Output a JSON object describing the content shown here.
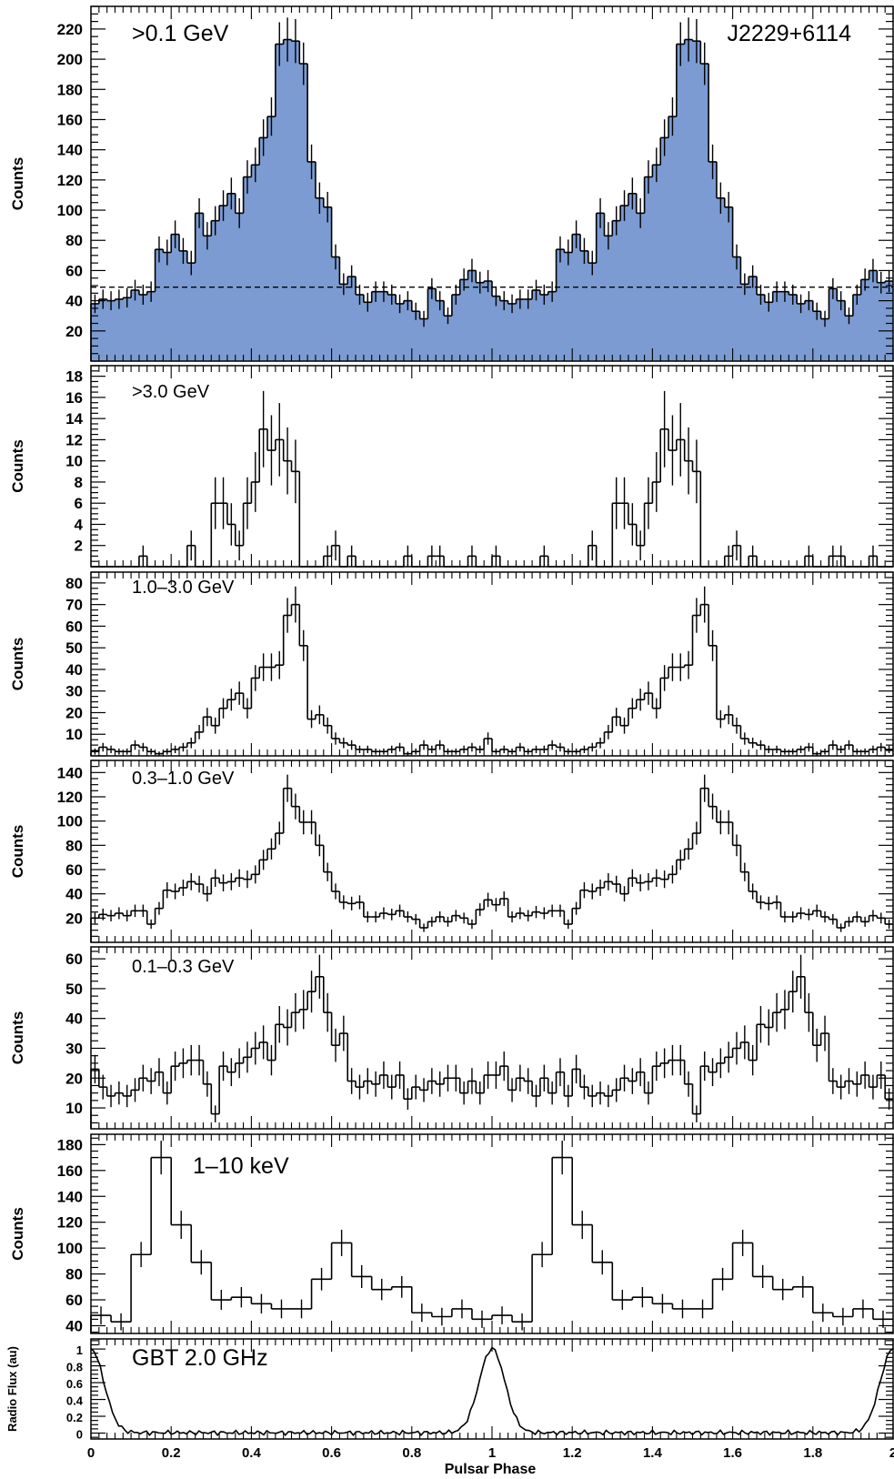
{
  "figure": {
    "source": "J2229+6114",
    "xlabel": "Pulsar Phase",
    "x_ticks": [
      "0",
      "0.2",
      "0.4",
      "0.6",
      "0.8",
      "1",
      "1.2",
      "1.4",
      "1.6",
      "1.8",
      "2"
    ]
  },
  "chart_data": [
    {
      "type": "bar",
      "label": ">0.1 GeV",
      "ylabel": "Counts",
      "ylim": [
        0,
        235
      ],
      "yticks": [
        20,
        40,
        60,
        80,
        100,
        120,
        140,
        160,
        180,
        200,
        220
      ],
      "bins": 100,
      "xlim": [
        0,
        2
      ],
      "filled": true,
      "fill_color": "#7b9bd2",
      "background_level": 49,
      "values": [
        38,
        41,
        40,
        41,
        42,
        47,
        44,
        46,
        74,
        72,
        84,
        73,
        65,
        98,
        83,
        93,
        103,
        111,
        98,
        122,
        130,
        148,
        162,
        210,
        213,
        212,
        197,
        132,
        108,
        102,
        69,
        51,
        56,
        44,
        39,
        46,
        46,
        44,
        38,
        40,
        33,
        28,
        48,
        40,
        30,
        44,
        54,
        60,
        52,
        53,
        43,
        40,
        38,
        41,
        41,
        47,
        44,
        46,
        74,
        72,
        84,
        73,
        65,
        98,
        83,
        93,
        103,
        111,
        98,
        122,
        130,
        148,
        162,
        210,
        213,
        212,
        197,
        132,
        108,
        102,
        69,
        51,
        56,
        44,
        39,
        46,
        46,
        44,
        38,
        40,
        33,
        28,
        48,
        40,
        30,
        44,
        54,
        60,
        52,
        53
      ]
    },
    {
      "type": "bar",
      "label": ">3.0 GeV",
      "ylabel": "Counts",
      "ylim": [
        0,
        19
      ],
      "yticks": [
        2,
        4,
        6,
        8,
        10,
        12,
        14,
        16,
        18
      ],
      "bins": 100,
      "xlim": [
        0,
        2
      ],
      "values": [
        0,
        0,
        0,
        0,
        0,
        0,
        1,
        0,
        0,
        0,
        0,
        0,
        2,
        0,
        0,
        6,
        6,
        4,
        2,
        6,
        8,
        13,
        11,
        12,
        10,
        9,
        0,
        0,
        0,
        1,
        2,
        0,
        1,
        0,
        0,
        0,
        0,
        0,
        0,
        1,
        0,
        0,
        1,
        1,
        0,
        0,
        0,
        1,
        0,
        0,
        1,
        0,
        0,
        0,
        0,
        0,
        1,
        0,
        0,
        0,
        0,
        0,
        2,
        0,
        0,
        6,
        6,
        4,
        2,
        6,
        8,
        13,
        11,
        12,
        10,
        9,
        0,
        0,
        0,
        1,
        2,
        0,
        1,
        0,
        0,
        0,
        0,
        0,
        0,
        1,
        0,
        0,
        1,
        1,
        0,
        0,
        0,
        1,
        0,
        0
      ]
    },
    {
      "type": "bar",
      "label": "1.0–3.0 GeV",
      "ylabel": "Counts",
      "ylim": [
        0,
        85
      ],
      "yticks": [
        10,
        20,
        30,
        40,
        50,
        60,
        70,
        80
      ],
      "bins": 100,
      "xlim": [
        0,
        2
      ],
      "values": [
        2,
        4,
        3,
        2,
        2,
        5,
        4,
        2,
        1,
        2,
        3,
        4,
        6,
        11,
        18,
        14,
        22,
        26,
        29,
        22,
        36,
        41,
        41,
        42,
        65,
        70,
        51,
        17,
        19,
        14,
        8,
        6,
        5,
        3,
        3,
        2,
        2,
        3,
        4,
        1,
        2,
        5,
        3,
        5,
        2,
        2,
        3,
        4,
        3,
        8,
        2,
        3,
        2,
        4,
        2,
        3,
        3,
        5,
        4,
        2,
        2,
        3,
        4,
        6,
        11,
        18,
        14,
        22,
        26,
        29,
        22,
        36,
        41,
        41,
        42,
        65,
        70,
        51,
        17,
        19,
        14,
        8,
        6,
        5,
        3,
        3,
        2,
        2,
        3,
        4,
        1,
        2,
        5,
        3,
        5,
        2,
        2,
        3,
        4,
        3
      ]
    },
    {
      "type": "bar",
      "label": "0.3–1.0 GeV",
      "ylabel": "Counts",
      "ylim": [
        0,
        150
      ],
      "yticks": [
        20,
        40,
        60,
        80,
        100,
        120,
        140
      ],
      "bins": 100,
      "xlim": [
        0,
        2
      ],
      "values": [
        20,
        23,
        22,
        24,
        22,
        26,
        26,
        15,
        28,
        43,
        42,
        45,
        50,
        48,
        40,
        53,
        49,
        50,
        53,
        52,
        56,
        68,
        77,
        90,
        127,
        112,
        99,
        99,
        80,
        58,
        42,
        33,
        32,
        33,
        21,
        21,
        24,
        23,
        26,
        21,
        19,
        12,
        17,
        21,
        17,
        22,
        20,
        15,
        27,
        35,
        31,
        36,
        21,
        24,
        22,
        25,
        24,
        26,
        26,
        15,
        28,
        43,
        42,
        45,
        50,
        48,
        40,
        53,
        49,
        50,
        53,
        52,
        56,
        68,
        77,
        90,
        127,
        112,
        99,
        99,
        80,
        58,
        42,
        33,
        32,
        33,
        21,
        21,
        24,
        23,
        26,
        21,
        19,
        12,
        17,
        21,
        17,
        22,
        20,
        15
      ]
    },
    {
      "type": "bar",
      "label": "0.1–0.3 GeV",
      "ylabel": "Counts",
      "ylim": [
        3,
        64
      ],
      "yticks": [
        10,
        20,
        30,
        40,
        50,
        60
      ],
      "bins": 100,
      "xlim": [
        0,
        2
      ],
      "values": [
        23,
        17,
        14,
        15,
        14,
        16,
        20,
        19,
        22,
        15,
        24,
        25,
        26,
        26,
        18,
        8,
        24,
        22,
        25,
        27,
        30,
        32,
        26,
        38,
        37,
        42,
        43,
        49,
        54,
        42,
        31,
        35,
        19,
        17,
        19,
        18,
        21,
        17,
        21,
        13,
        17,
        16,
        19,
        18,
        20,
        20,
        15,
        19,
        15,
        21,
        21,
        24,
        16,
        20,
        19,
        14,
        20,
        15,
        22,
        14,
        23,
        17,
        14,
        15,
        14,
        16,
        20,
        19,
        22,
        15,
        24,
        25,
        26,
        26,
        18,
        8,
        24,
        22,
        25,
        27,
        30,
        32,
        26,
        38,
        37,
        42,
        43,
        49,
        54,
        42,
        31,
        35,
        19,
        17,
        19,
        18,
        21,
        17,
        21,
        13
      ]
    },
    {
      "type": "bar",
      "label": "1–10 keV",
      "ylabel": "Counts",
      "ylim": [
        34,
        188
      ],
      "yticks": [
        40,
        60,
        80,
        100,
        120,
        140,
        160,
        180
      ],
      "bins": 40,
      "xlim": [
        0,
        2
      ],
      "values": [
        48,
        43,
        95,
        170,
        118,
        89,
        60,
        62,
        57,
        53,
        53,
        76,
        104,
        78,
        68,
        70,
        50,
        47,
        53,
        45,
        48,
        43,
        95,
        170,
        118,
        89,
        60,
        62,
        57,
        53,
        53,
        76,
        104,
        78,
        68,
        70,
        50,
        47,
        53,
        45
      ]
    },
    {
      "type": "line",
      "label": "GBT 2.0 GHz",
      "ylabel": "Radio Flux (au)",
      "ylim": [
        -0.07,
        1.12
      ],
      "yticks": [
        0,
        0.2,
        0.4,
        0.6,
        0.8,
        1
      ],
      "ytick_labels": [
        "0",
        "0.2",
        "0.4",
        "0.6",
        "0.8",
        "1"
      ],
      "xlim": [
        0,
        2
      ],
      "peak_phases": [
        0,
        1,
        2
      ],
      "peak_height": 1.0,
      "baseline": 0.0
    }
  ]
}
